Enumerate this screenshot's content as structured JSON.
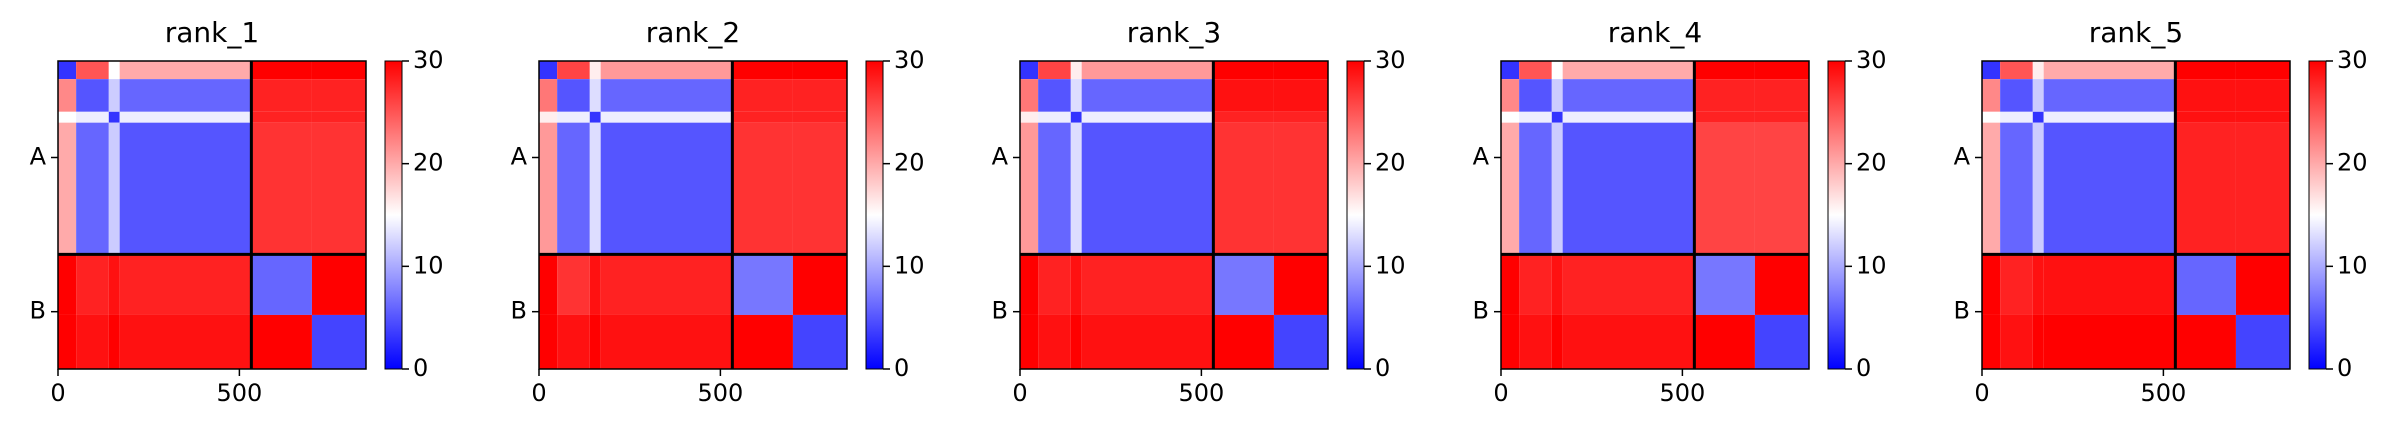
{
  "chart_data": [
    {
      "type": "heatmap",
      "title": "rank_1",
      "xlim": [
        0,
        849
      ],
      "ylim": [
        849,
        0
      ],
      "xticks": [
        0,
        500
      ],
      "yticks": [
        {
          "value": 266,
          "label": "A"
        },
        {
          "value": 691,
          "label": "B"
        }
      ],
      "boundaries": [
        533
      ],
      "edges": [
        0,
        50,
        140,
        170,
        533,
        700,
        849
      ],
      "values": [
        [
          3,
          25,
          15,
          20,
          30,
          30
        ],
        [
          22,
          5,
          12,
          6,
          28,
          28
        ],
        [
          15,
          14,
          3,
          14,
          28,
          28
        ],
        [
          20,
          6,
          12,
          5,
          27,
          27
        ],
        [
          30,
          28,
          29,
          28,
          6,
          30
        ],
        [
          30,
          29,
          30,
          29,
          30,
          4
        ]
      ],
      "colormap": [
        "#0000ff",
        "#ffffff",
        "#ff0000"
      ],
      "clim": [
        0,
        30
      ],
      "cticks": [
        0,
        10,
        20,
        30
      ]
    },
    {
      "type": "heatmap",
      "title": "rank_2",
      "xlim": [
        0,
        849
      ],
      "ylim": [
        849,
        0
      ],
      "xticks": [
        0,
        500
      ],
      "yticks": [
        {
          "value": 266,
          "label": "A"
        },
        {
          "value": 691,
          "label": "B"
        }
      ],
      "boundaries": [
        533
      ],
      "edges": [
        0,
        50,
        140,
        170,
        533,
        700,
        849
      ],
      "values": [
        [
          3,
          26,
          16,
          21,
          30,
          30
        ],
        [
          23,
          5,
          13,
          6,
          28,
          28
        ],
        [
          16,
          14,
          3,
          14,
          28,
          28
        ],
        [
          21,
          6,
          13,
          5,
          27,
          27
        ],
        [
          30,
          27,
          29,
          28,
          7,
          30
        ],
        [
          30,
          29,
          30,
          29,
          30,
          4
        ]
      ],
      "colormap": [
        "#0000ff",
        "#ffffff",
        "#ff0000"
      ],
      "clim": [
        0,
        30
      ],
      "cticks": [
        0,
        10,
        20,
        30
      ]
    },
    {
      "type": "heatmap",
      "title": "rank_3",
      "xlim": [
        0,
        849
      ],
      "ylim": [
        849,
        0
      ],
      "xticks": [
        0,
        500
      ],
      "yticks": [
        {
          "value": 266,
          "label": "A"
        },
        {
          "value": 691,
          "label": "B"
        }
      ],
      "boundaries": [
        533
      ],
      "edges": [
        0,
        50,
        140,
        170,
        533,
        700,
        849
      ],
      "values": [
        [
          3,
          26,
          16,
          21,
          30,
          30
        ],
        [
          23,
          5,
          13,
          6,
          29,
          29
        ],
        [
          16,
          14,
          3,
          14,
          28,
          28
        ],
        [
          21,
          6,
          13,
          5,
          27,
          27
        ],
        [
          30,
          28,
          29,
          28,
          7,
          30
        ],
        [
          30,
          29,
          30,
          29,
          30,
          4
        ]
      ],
      "colormap": [
        "#0000ff",
        "#ffffff",
        "#ff0000"
      ],
      "clim": [
        0,
        30
      ],
      "cticks": [
        0,
        10,
        20,
        30
      ]
    },
    {
      "type": "heatmap",
      "title": "rank_4",
      "xlim": [
        0,
        849
      ],
      "ylim": [
        849,
        0
      ],
      "xticks": [
        0,
        500
      ],
      "yticks": [
        {
          "value": 266,
          "label": "A"
        },
        {
          "value": 691,
          "label": "B"
        }
      ],
      "boundaries": [
        533
      ],
      "edges": [
        0,
        50,
        140,
        170,
        533,
        700,
        849
      ],
      "values": [
        [
          3,
          25,
          15,
          20,
          30,
          30
        ],
        [
          22,
          5,
          12,
          6,
          28,
          28
        ],
        [
          15,
          14,
          3,
          14,
          28,
          28
        ],
        [
          20,
          6,
          12,
          5,
          26,
          26
        ],
        [
          30,
          28,
          29,
          28,
          7,
          30
        ],
        [
          30,
          29,
          30,
          29,
          30,
          4
        ]
      ],
      "colormap": [
        "#0000ff",
        "#ffffff",
        "#ff0000"
      ],
      "clim": [
        0,
        30
      ],
      "cticks": [
        0,
        10,
        20,
        30
      ]
    },
    {
      "type": "heatmap",
      "title": "rank_5",
      "xlim": [
        0,
        849
      ],
      "ylim": [
        849,
        0
      ],
      "xticks": [
        0,
        500
      ],
      "yticks": [
        {
          "value": 266,
          "label": "A"
        },
        {
          "value": 691,
          "label": "B"
        }
      ],
      "boundaries": [
        533
      ],
      "edges": [
        0,
        50,
        140,
        170,
        533,
        700,
        849
      ],
      "values": [
        [
          3,
          25,
          16,
          20,
          30,
          30
        ],
        [
          22,
          5,
          12,
          6,
          29,
          29
        ],
        [
          15,
          14,
          3,
          14,
          29,
          29
        ],
        [
          20,
          6,
          12,
          5,
          28,
          28
        ],
        [
          30,
          28,
          29,
          29,
          6,
          30
        ],
        [
          30,
          29,
          30,
          30,
          30,
          4
        ]
      ],
      "colormap": [
        "#0000ff",
        "#ffffff",
        "#ff0000"
      ],
      "clim": [
        0,
        30
      ],
      "cticks": [
        0,
        10,
        20,
        30
      ]
    }
  ]
}
